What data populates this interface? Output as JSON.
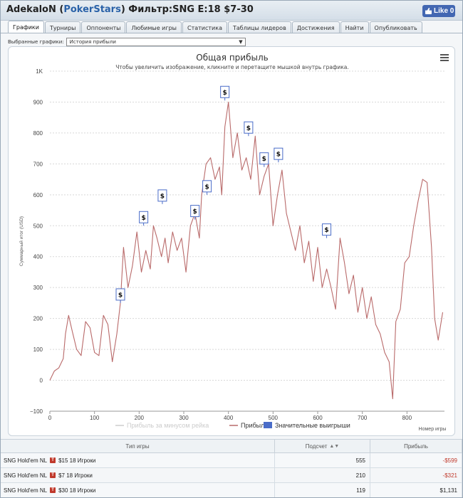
{
  "header": {
    "player": "AdekaloN",
    "site_open": " (",
    "site": "PokerStars",
    "site_close": ")",
    "filter": " Фильтр:SNG E:18 $7-30",
    "fb_like": "Like 0"
  },
  "tabs": [
    {
      "label": "Графики",
      "active": true
    },
    {
      "label": "Турниры"
    },
    {
      "label": "Оппоненты"
    },
    {
      "label": "Любимые игры"
    },
    {
      "label": "Статистика"
    },
    {
      "label": "Таблицы лидеров"
    },
    {
      "label": "Достижения"
    },
    {
      "label": "Найти"
    },
    {
      "label": "Опубликовать"
    }
  ],
  "selector": {
    "label": "Выбранные графики:",
    "value": "История прибыли",
    "arrow": "▼"
  },
  "chart_data": {
    "type": "line",
    "title": "Общая прибыль",
    "subtitle": "Чтобы увеличить изображение, кликните и перетащите мышкой внутрь графика.",
    "xlabel": "Номер игры",
    "ylabel": "Суммарный итог (USD)",
    "xlim": [
      0,
      884
    ],
    "ylim": [
      -100,
      1000
    ],
    "xticks": [
      0,
      100,
      200,
      300,
      400,
      500,
      600,
      700,
      800
    ],
    "yticks": [
      -100,
      0,
      100,
      200,
      300,
      400,
      500,
      600,
      700,
      800,
      900,
      1000
    ],
    "ytick_labels": [
      "−100",
      "0",
      "100",
      "200",
      "300",
      "400",
      "500",
      "600",
      "700",
      "800",
      "900",
      "1K"
    ],
    "grid": "horizontal-dotted",
    "legend_position": "bottom",
    "legend": [
      {
        "name": "Прибыль за минусом рейка",
        "color": "#cccccc",
        "hidden": true
      },
      {
        "name": "Прибыль",
        "color": "#b96a6a"
      },
      {
        "name": "Значительные выигрыши",
        "color": "#4a6cc8"
      }
    ],
    "series": [
      {
        "name": "Прибыль",
        "color": "#b96a6a",
        "x": [
          0,
          10,
          20,
          30,
          35,
          42,
          50,
          60,
          70,
          80,
          90,
          100,
          110,
          120,
          130,
          140,
          150,
          158,
          165,
          175,
          185,
          195,
          205,
          215,
          225,
          232,
          240,
          250,
          258,
          265,
          275,
          285,
          295,
          305,
          315,
          325,
          335,
          340,
          350,
          360,
          370,
          380,
          385,
          392,
          400,
          410,
          420,
          430,
          440,
          450,
          460,
          470,
          480,
          490,
          500,
          510,
          520,
          530,
          540,
          550,
          560,
          570,
          580,
          590,
          600,
          610,
          620,
          630,
          640,
          650,
          660,
          670,
          680,
          690,
          700,
          710,
          720,
          730,
          740,
          750,
          760,
          768,
          775,
          785,
          795,
          805,
          815,
          825,
          835,
          845,
          855,
          862,
          870,
          880
        ],
        "y": [
          0,
          30,
          40,
          70,
          150,
          210,
          160,
          100,
          80,
          190,
          170,
          90,
          80,
          210,
          180,
          60,
          150,
          250,
          430,
          300,
          370,
          480,
          350,
          420,
          360,
          500,
          460,
          400,
          460,
          380,
          480,
          420,
          460,
          350,
          500,
          540,
          460,
          600,
          700,
          720,
          650,
          690,
          600,
          820,
          900,
          720,
          800,
          680,
          720,
          650,
          790,
          600,
          660,
          700,
          500,
          600,
          680,
          540,
          480,
          420,
          500,
          380,
          450,
          320,
          430,
          300,
          360,
          300,
          230,
          460,
          380,
          280,
          340,
          220,
          300,
          200,
          270,
          180,
          150,
          90,
          60,
          -60,
          190,
          230,
          380,
          400,
          500,
          580,
          650,
          640,
          430,
          200,
          130,
          220
        ]
      }
    ],
    "significant_wins": [
      {
        "x": 158,
        "y": 250,
        "label": "$"
      },
      {
        "x": 210,
        "y": 500,
        "label": "$"
      },
      {
        "x": 252,
        "y": 570,
        "label": "$"
      },
      {
        "x": 325,
        "y": 520,
        "label": "$"
      },
      {
        "x": 352,
        "y": 600,
        "label": "$"
      },
      {
        "x": 392,
        "y": 905,
        "label": "$"
      },
      {
        "x": 445,
        "y": 790,
        "label": "$"
      },
      {
        "x": 480,
        "y": 690,
        "label": "$"
      },
      {
        "x": 512,
        "y": 705,
        "label": "$"
      },
      {
        "x": 620,
        "y": 460,
        "label": "$"
      }
    ]
  },
  "table": {
    "headers": {
      "game": "Тип игры",
      "count": "Подсчет",
      "profit": "Прибыль",
      "sort_icon": "sort-desc-icon"
    },
    "rows": [
      {
        "game": "SNG Hold'em NL",
        "flag": "T",
        "desc": "$15 18 Игроки",
        "count": "555",
        "profit": "-$599",
        "negative": true
      },
      {
        "game": "SNG Hold'em NL",
        "flag": "T",
        "desc": "$7 18 Игроки",
        "count": "210",
        "profit": "-$321",
        "negative": true
      },
      {
        "game": "SNG Hold'em NL",
        "flag": "T",
        "desc": "$30 18 Игроки",
        "count": "119",
        "profit": "$1,131",
        "negative": false
      }
    ]
  },
  "icons": {
    "menu": "hamburger-menu-icon",
    "like": "thumbs-up-icon",
    "sort": "sort-desc-icon"
  }
}
